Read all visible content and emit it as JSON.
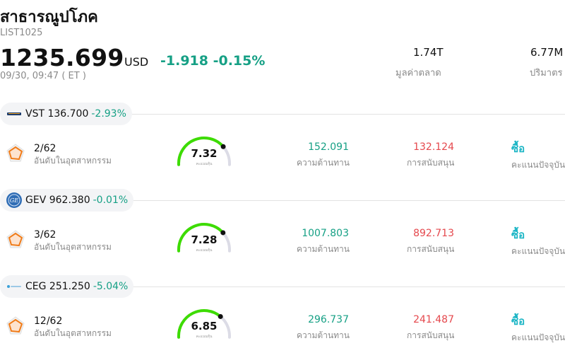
{
  "header": {
    "title": "สาธารณูปโภค",
    "code": "LIST1025",
    "price": "1235.699",
    "currency": "USD",
    "change": "-1.918 -0.15%",
    "timestamp": "09/30, 09:47  ( ET )"
  },
  "stats": [
    {
      "value": "1.74T",
      "label": "มูลค่าตลาด"
    },
    {
      "value": "6.77M",
      "label": "ปริมาตร"
    }
  ],
  "stocks": [
    {
      "symbol": "VST 136.700",
      "change": "-2.93%",
      "logo": "vistra-logo",
      "rank": "2/62",
      "rank_label": "อันดับในอุตสาหกรรม",
      "score": "7.32",
      "score_label": "คะแนนหุ้น",
      "score_fraction": 0.732,
      "resistance": "152.091",
      "resistance_label": "ความต้านทาน",
      "support": "132.124",
      "support_label": "การสนับสนุน",
      "rating": "ซื้อ",
      "rating_label": "คะแนนปัจจุบัน"
    },
    {
      "symbol": "GEV 962.380",
      "change": "-0.01%",
      "logo": "ge-logo",
      "rank": "3/62",
      "rank_label": "อันดับในอุตสาหกรรม",
      "score": "7.28",
      "score_label": "คะแนนหุ้น",
      "score_fraction": 0.728,
      "resistance": "1007.803",
      "resistance_label": "ความต้านทาน",
      "support": "892.713",
      "support_label": "การสนับสนุน",
      "rating": "ซื้อ",
      "rating_label": "คะแนนปัจจุบัน"
    },
    {
      "symbol": "CEG 251.250",
      "change": "-5.04%",
      "logo": "constellation-logo",
      "rank": "12/62",
      "rank_label": "อันดับในอุตสาหกรรม",
      "score": "6.85",
      "score_label": "คะแนนหุ้น",
      "score_fraction": 0.685,
      "resistance": "296.737",
      "resistance_label": "ความต้านทาน",
      "support": "241.487",
      "support_label": "การสนับสนุน",
      "rating": "ซื้อ",
      "rating_label": "คะแนนปัจจุบัน"
    }
  ],
  "colors": {
    "negative_change": "#16a085",
    "resistance": "#16a085",
    "support": "#e5484d",
    "rating": "#1bb5c5",
    "gauge_fill": "#3ddc00",
    "gauge_track": "#dcdce6"
  }
}
